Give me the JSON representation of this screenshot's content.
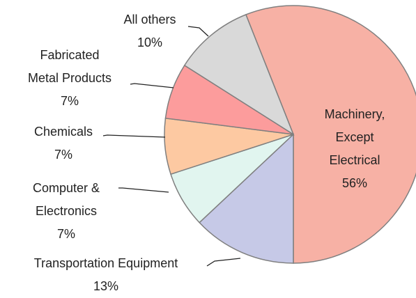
{
  "chart_data": {
    "type": "pie",
    "categories": [
      "Machinery,\nExcept\nElectrical",
      "Transportation Equipment",
      "Computer &\nElectronics",
      "Chemicals",
      "Fabricated\nMetal Products",
      "All others"
    ],
    "values": [
      56,
      13,
      7,
      7,
      7,
      10
    ],
    "value_labels": [
      "56%",
      "13%",
      "7%",
      "7%",
      "7%",
      "10%"
    ],
    "colors": [
      "#f7b1a5",
      "#c6c9e7",
      "#e1f5ef",
      "#fdc9a2",
      "#fc9c9c",
      "#d9d9d9"
    ]
  }
}
